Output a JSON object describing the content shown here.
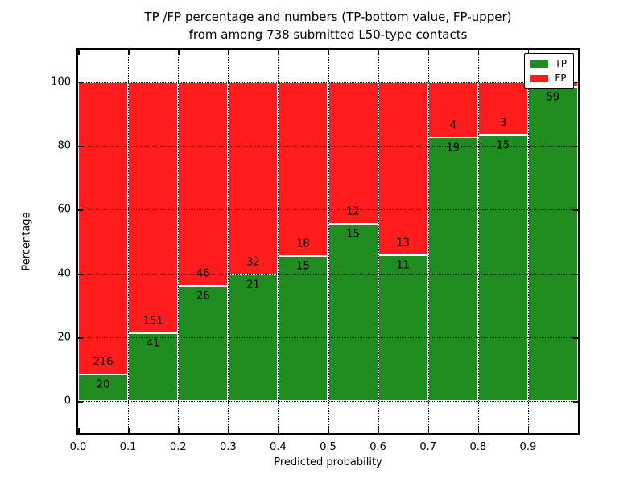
{
  "title": {
    "line1": "TP /FP percentage and numbers (TP-bottom value, FP-upper)",
    "line2": "from among 738 submitted L50-type contacts"
  },
  "axes": {
    "xlabel": "Predicted probability",
    "ylabel": "Percentage",
    "xtick_labels": [
      "0.0",
      "0.1",
      "0.2",
      "0.3",
      "0.4",
      "0.5",
      "0.6",
      "0.7",
      "0.8",
      "0.9"
    ],
    "ytick_labels": [
      "0",
      "20",
      "40",
      "60",
      "80",
      "100"
    ],
    "ytick_values": [
      0,
      20,
      40,
      60,
      80,
      100
    ],
    "ylim": [
      -10,
      110
    ],
    "xlim": [
      0,
      1
    ],
    "grid": "dotted black, drawn over bars"
  },
  "legend": {
    "position": "upper right",
    "items": [
      {
        "label": "TP",
        "color": "#1e8c1e"
      },
      {
        "label": "FP",
        "color": "#ff1c1c"
      }
    ]
  },
  "colors": {
    "tp_green": "#1e8c1e",
    "fp_red": "#ff1c1c",
    "bar_edge": "#ffffff",
    "frame": "#000000"
  },
  "chart_data": {
    "type": "bar",
    "stacked": true,
    "normalized": "each bin scaled to 100%",
    "title": "TP /FP percentage and numbers (TP-bottom value, FP-upper) from among 738 submitted L50-type contacts",
    "xlabel": "Predicted probability",
    "ylabel": "Percentage",
    "bin_starts": [
      0.0,
      0.1,
      0.2,
      0.3,
      0.4,
      0.5,
      0.6,
      0.7,
      0.8,
      0.9
    ],
    "bin_width": 0.1,
    "series": [
      {
        "name": "TP",
        "counts": [
          20,
          41,
          26,
          21,
          15,
          15,
          11,
          19,
          15,
          59
        ]
      },
      {
        "name": "FP",
        "counts": [
          216,
          151,
          46,
          32,
          18,
          12,
          13,
          4,
          3,
          1
        ]
      }
    ],
    "total_contacts": 738,
    "ylim": [
      -10,
      110
    ],
    "xlim": [
      0,
      1
    ],
    "legend_position": "upper right",
    "note_last_fp_label_hidden_behind_legend": true
  }
}
